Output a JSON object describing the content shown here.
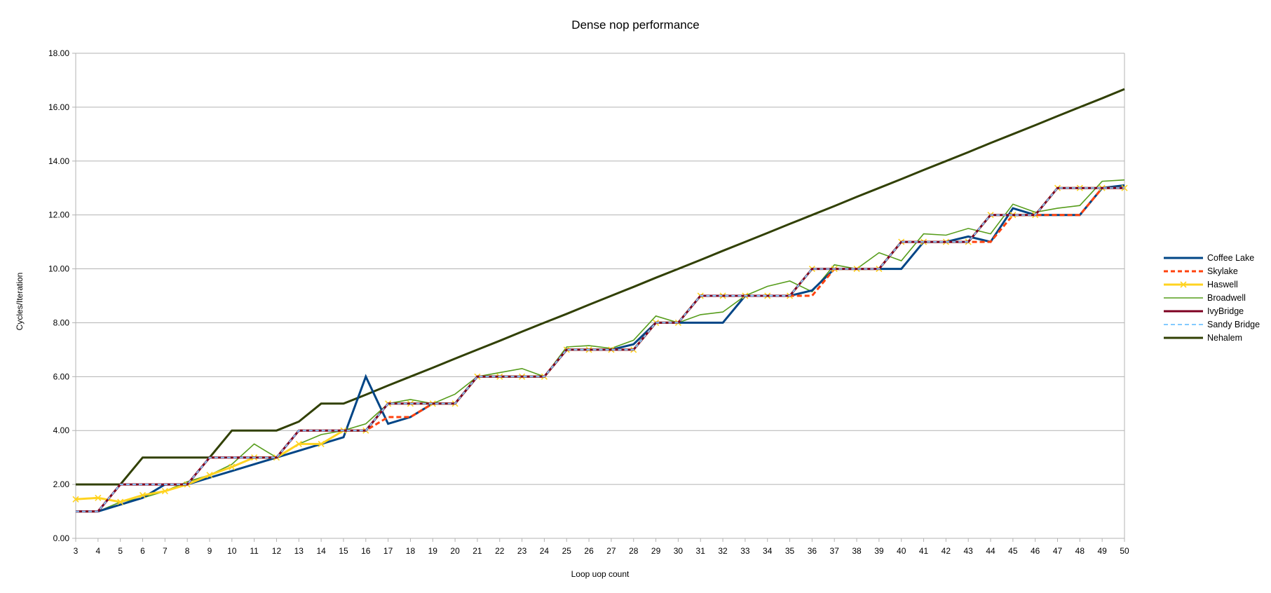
{
  "chart_data": {
    "type": "line",
    "title": "Dense nop performance",
    "xlabel": "Loop uop count",
    "ylabel": "Cycles/Iteration",
    "ylim": [
      0,
      18
    ],
    "yticks": [
      "0.00",
      "2.00",
      "4.00",
      "6.00",
      "8.00",
      "10.00",
      "12.00",
      "14.00",
      "16.00",
      "18.00"
    ],
    "grid": "horizontal",
    "legend_position": "right",
    "x": [
      3,
      4,
      5,
      6,
      7,
      8,
      9,
      10,
      11,
      12,
      13,
      14,
      15,
      16,
      17,
      18,
      19,
      20,
      21,
      22,
      23,
      24,
      25,
      26,
      27,
      28,
      29,
      30,
      31,
      32,
      33,
      34,
      35,
      36,
      37,
      38,
      39,
      40,
      41,
      42,
      43,
      44,
      45,
      46,
      47,
      48,
      49,
      50
    ],
    "series": [
      {
        "name": "Coffee Lake",
        "color": "#004586",
        "dash": "solid",
        "width": 3,
        "marker": "none",
        "values": [
          1,
          1,
          1.25,
          1.5,
          2,
          2,
          2.25,
          2.5,
          2.75,
          3,
          3.25,
          3.5,
          3.75,
          6,
          4.25,
          4.5,
          5,
          5,
          6,
          6,
          6,
          6,
          7,
          7,
          7,
          7.2,
          8,
          8,
          8,
          8,
          9,
          9,
          9,
          9.2,
          10,
          10,
          10,
          10,
          11,
          11,
          11.2,
          11,
          12.25,
          12,
          12,
          12,
          13,
          13.1
        ]
      },
      {
        "name": "Skylake",
        "color": "#ff420e",
        "dash": "dashed",
        "width": 3,
        "marker": "none",
        "values": [
          1,
          1,
          2,
          2,
          2,
          2,
          3,
          3,
          3,
          3,
          4,
          4,
          4,
          4,
          4.5,
          4.5,
          5,
          5,
          6,
          6,
          6,
          6,
          7,
          7,
          7,
          7,
          8,
          8,
          9,
          9,
          9,
          9,
          9,
          9,
          10,
          10,
          10,
          11,
          11,
          11,
          11,
          11,
          12,
          12,
          12,
          12,
          13,
          13
        ]
      },
      {
        "name": "Haswell",
        "color": "#ffd320",
        "dash": "solid",
        "width": 3,
        "marker": "x",
        "values": [
          1.45,
          1.5,
          1.35,
          1.6,
          1.75,
          2,
          2.35,
          2.65,
          3,
          3,
          3.5,
          3.5,
          4,
          4,
          5,
          5,
          5,
          5,
          6,
          6,
          6,
          6,
          7,
          7,
          7,
          7,
          8,
          8,
          9,
          9,
          9,
          9,
          9,
          10,
          10,
          10,
          10,
          11,
          11,
          11,
          11,
          12,
          12,
          12,
          13,
          13,
          13,
          13
        ]
      },
      {
        "name": "Broadwell",
        "color": "#579d1c",
        "dash": "solid",
        "width": 1.6,
        "marker": "none",
        "values": [
          1,
          1,
          1.35,
          1.5,
          1.75,
          2.1,
          2.35,
          2.75,
          3.5,
          3,
          3.5,
          3.85,
          4,
          4.25,
          5,
          5.15,
          5,
          5.35,
          6,
          6.15,
          6.3,
          6,
          7.1,
          7.15,
          7.05,
          7.35,
          8.25,
          8,
          8.3,
          8.4,
          9,
          9.35,
          9.55,
          9.15,
          10.15,
          10,
          10.6,
          10.3,
          11.3,
          11.25,
          11.5,
          11.3,
          12.4,
          12.1,
          12.25,
          12.35,
          13.25,
          13.3
        ]
      },
      {
        "name": "IvyBridge",
        "color": "#7e0021",
        "dash": "solid",
        "width": 3,
        "marker": "none",
        "values": [
          1,
          1,
          2,
          2,
          2,
          2,
          3,
          3,
          3,
          3,
          4,
          4,
          4,
          4,
          5,
          5,
          5,
          5,
          6,
          6,
          6,
          6,
          7,
          7,
          7,
          7,
          8,
          8,
          9,
          9,
          9,
          9,
          9,
          10,
          10,
          10,
          10,
          11,
          11,
          11,
          11,
          12,
          12,
          12,
          13,
          13,
          13,
          13
        ]
      },
      {
        "name": "Sandy Bridge",
        "color": "#83caff",
        "dash": "dashed",
        "width": 2,
        "marker": "none",
        "values": [
          1,
          1,
          2,
          2,
          2,
          2,
          3,
          3,
          3,
          3,
          4,
          4,
          4,
          4,
          5,
          5,
          5,
          5,
          6,
          6,
          6,
          6,
          7,
          7,
          7,
          7,
          8,
          8,
          9,
          9,
          9,
          9,
          9,
          10,
          10,
          10,
          10,
          11,
          11,
          11,
          11,
          12,
          12,
          12,
          13,
          13,
          13,
          13
        ]
      },
      {
        "name": "Nehalem",
        "color": "#314004",
        "dash": "solid",
        "width": 3,
        "marker": "none",
        "values": [
          2,
          2,
          2,
          3,
          3,
          3,
          3,
          4,
          4,
          4,
          4.33,
          5,
          5,
          5.33,
          5.67,
          6,
          6.33,
          6.67,
          7,
          7.33,
          7.67,
          8,
          8.33,
          8.67,
          9,
          9.33,
          9.67,
          10,
          10.33,
          10.67,
          11,
          11.33,
          11.67,
          12,
          12.33,
          12.67,
          13,
          13.33,
          13.67,
          14,
          14.33,
          14.67,
          15,
          15.33,
          15.67,
          16,
          16.33,
          16.67
        ]
      }
    ]
  }
}
